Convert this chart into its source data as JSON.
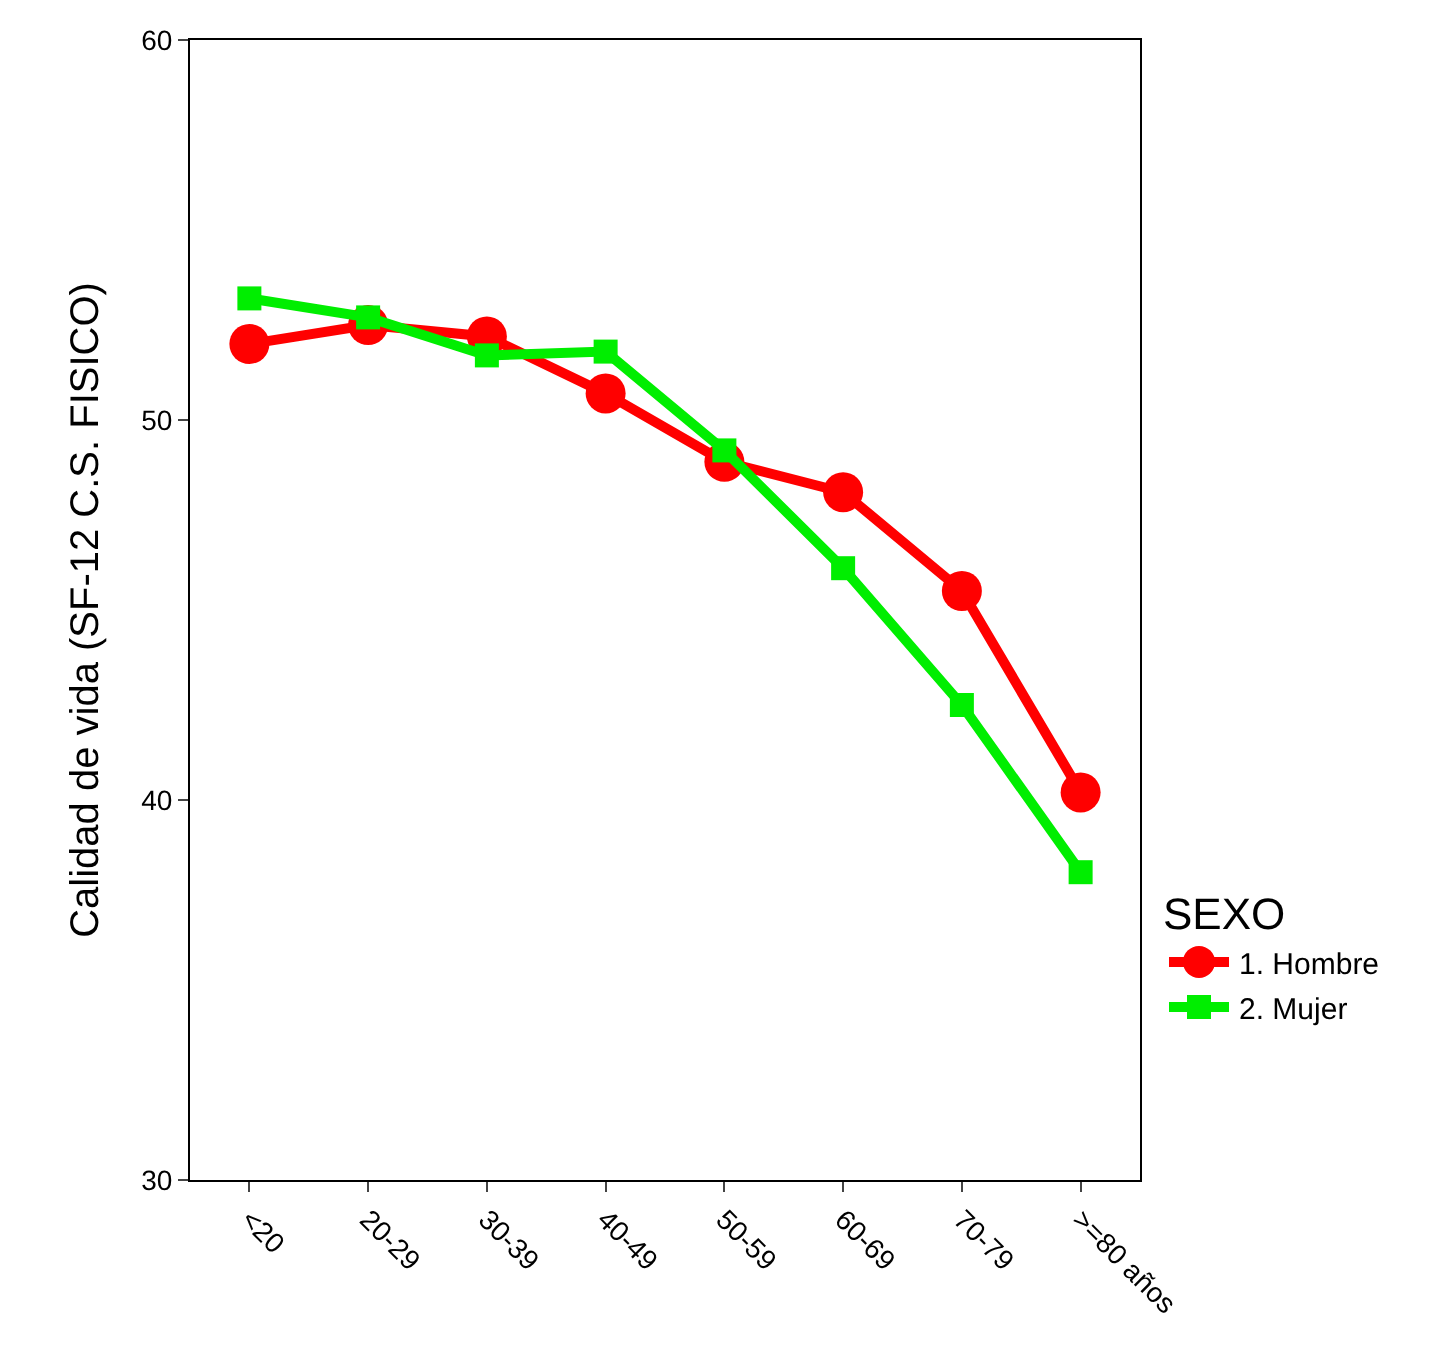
{
  "chart_data": {
    "type": "line",
    "ylabel": "Calidad de vida (SF-12 C.S. FISICO)",
    "legend_title": "SEXO",
    "categories": [
      "<20",
      "20-29",
      "30-39",
      "40-49",
      "50-59",
      "60-69",
      "70-79",
      ">=80 años"
    ],
    "series": [
      {
        "name": "1. Hombre",
        "color": "#ff0000",
        "marker": "circle",
        "values": [
          52.0,
          52.5,
          52.2,
          50.7,
          48.9,
          48.1,
          45.5,
          40.2
        ]
      },
      {
        "name": "2. Mujer",
        "color": "#00ee00",
        "marker": "square",
        "values": [
          53.2,
          52.7,
          51.7,
          51.8,
          49.2,
          46.1,
          42.5,
          38.1
        ]
      }
    ],
    "ylim": [
      30,
      60
    ],
    "yticks": [
      30,
      40,
      50,
      60
    ],
    "legend": "right",
    "line_style": "solid"
  }
}
